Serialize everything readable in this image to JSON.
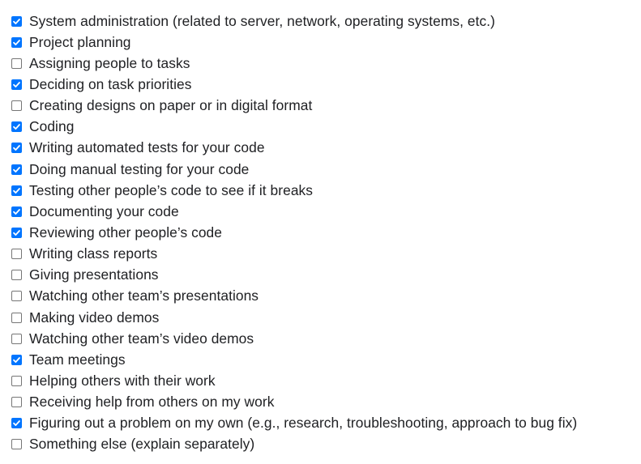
{
  "colors": {
    "checked": "#0075ff",
    "unchecked_border": "#767676",
    "text": "#202124"
  },
  "checklist": {
    "items": [
      {
        "label": "System administration (related to server, network, operating systems, etc.)",
        "checked": true
      },
      {
        "label": "Project planning",
        "checked": true
      },
      {
        "label": "Assigning people to tasks",
        "checked": false
      },
      {
        "label": "Deciding on task priorities",
        "checked": true
      },
      {
        "label": "Creating designs on paper or in digital format",
        "checked": false
      },
      {
        "label": "Coding",
        "checked": true
      },
      {
        "label": "Writing automated tests for your code",
        "checked": true
      },
      {
        "label": "Doing manual testing for your code",
        "checked": true
      },
      {
        "label": "Testing other people’s code to see if it breaks",
        "checked": true
      },
      {
        "label": "Documenting your code",
        "checked": true
      },
      {
        "label": "Reviewing other people’s code",
        "checked": true
      },
      {
        "label": "Writing class reports",
        "checked": false
      },
      {
        "label": "Giving presentations",
        "checked": false
      },
      {
        "label": "Watching other team’s presentations",
        "checked": false
      },
      {
        "label": "Making video demos",
        "checked": false
      },
      {
        "label": "Watching other team’s video demos",
        "checked": false
      },
      {
        "label": "Team meetings",
        "checked": true
      },
      {
        "label": "Helping others with their work",
        "checked": false
      },
      {
        "label": "Receiving help from others on my work",
        "checked": false
      },
      {
        "label": "Figuring out a problem on my own (e.g., research, troubleshooting, approach to bug fix)",
        "checked": true
      },
      {
        "label": "Something else (explain separately)",
        "checked": false
      }
    ]
  }
}
